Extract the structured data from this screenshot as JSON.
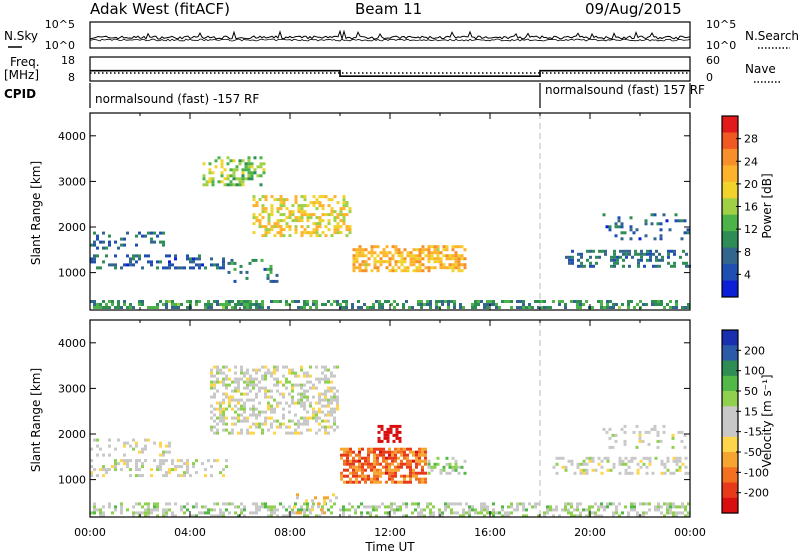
{
  "header": {
    "station": "Adak West (fitACF)",
    "beam": "Beam 11",
    "date": "09/Aug/2015"
  },
  "side_labels": {
    "nsky": "N.Sky",
    "nsearch": "N.Search",
    "freq_line1": "Freq.",
    "freq_line2": "[MHz]",
    "nave": "Nave",
    "cpid": "CPID"
  },
  "noise_panel": {
    "left_ticks": [
      "10^5",
      "10^0"
    ],
    "right_ticks": [
      "10^5",
      "10^0"
    ]
  },
  "freq_panel": {
    "left_ticks": [
      "18",
      "8"
    ],
    "right_ticks": [
      "60",
      "0"
    ],
    "freq_mhz": [
      {
        "t_start": 0,
        "t_end": 10,
        "value": 12.3
      },
      {
        "t_start": 10,
        "t_end": 18,
        "value": 10.0
      },
      {
        "t_start": 18,
        "t_end": 24,
        "value": 12.3
      }
    ],
    "nave": 20
  },
  "cpid_panel": {
    "left_text": "normalsound (fast) -157 RF",
    "right_text": "normalsound (fast) 157 RF",
    "change_hour": 18
  },
  "power_colorbar": {
    "label": "Power [dB]",
    "ticks": [
      "28",
      "24",
      "20",
      "16",
      "12",
      "8",
      "4"
    ],
    "colors": [
      "#e31a1c",
      "#f05a22",
      "#f7902a",
      "#ffb22c",
      "#f2d32c",
      "#9fd046",
      "#4bb347",
      "#2e8c55",
      "#33668c",
      "#1f4fb3",
      "#0b1fd6"
    ]
  },
  "velocity_colorbar": {
    "label": "Velocity [m s⁻¹]",
    "ticks": [
      "200",
      "100",
      "50",
      "15",
      "-15",
      "-50",
      "-100",
      "-200"
    ],
    "colors": [
      "#1a2fb0",
      "#2a5aa8",
      "#2e8c55",
      "#52b848",
      "#8fd14f",
      "#c8c8c8",
      "#c8c8c8",
      "#ffd54a",
      "#f7a531",
      "#f2701f",
      "#e83a1a",
      "#d90f0f"
    ]
  },
  "x_axis": {
    "title": "Time UT",
    "ticks": [
      "00:00",
      "04:00",
      "08:00",
      "12:00",
      "16:00",
      "20:00",
      "00:00"
    ]
  },
  "y_axis": {
    "title": "Slant Range [km]",
    "ticks": [
      "1000",
      "2000",
      "3000",
      "4000"
    ]
  },
  "chart_data": [
    {
      "type": "heatmap",
      "title": "Power",
      "xlabel": "Time UT",
      "ylabel": "Slant Range [km]",
      "xlim_hours": [
        0,
        24
      ],
      "ylim_km": [
        180,
        4500
      ],
      "colorbar_label": "Power [dB]",
      "clim": [
        0,
        30
      ],
      "regions": [
        {
          "t": [
            0,
            24
          ],
          "r": [
            180,
            400
          ],
          "value": 10,
          "density": 0.55
        },
        {
          "t": [
            0,
            5.5
          ],
          "r": [
            1050,
            1400
          ],
          "value": 6,
          "density": 0.35
        },
        {
          "t": [
            0,
            3.2
          ],
          "r": [
            1500,
            1900
          ],
          "value": 7,
          "density": 0.25
        },
        {
          "t": [
            4.5,
            7.0
          ],
          "r": [
            2900,
            3550
          ],
          "value": 14,
          "density": 0.45
        },
        {
          "t": [
            6.5,
            10.5
          ],
          "r": [
            1800,
            2700
          ],
          "value": 18,
          "density": 0.45
        },
        {
          "t": [
            10.5,
            15.0
          ],
          "r": [
            1000,
            1600
          ],
          "value": 20,
          "density": 0.6
        },
        {
          "t": [
            19.0,
            24.0
          ],
          "r": [
            1100,
            1500
          ],
          "value": 7,
          "density": 0.35
        },
        {
          "t": [
            20.5,
            24.0
          ],
          "r": [
            1700,
            2300
          ],
          "value": 6,
          "density": 0.2
        },
        {
          "t": [
            5.5,
            7.5
          ],
          "r": [
            800,
            1300
          ],
          "value": 9,
          "density": 0.15
        }
      ]
    },
    {
      "type": "heatmap",
      "title": "Velocity",
      "xlabel": "Time UT",
      "ylabel": "Slant Range [km]",
      "xlim_hours": [
        0,
        24
      ],
      "ylim_km": [
        180,
        4500
      ],
      "colorbar_label": "Velocity [m s⁻¹]",
      "clim": [
        -200,
        200
      ],
      "regions": [
        {
          "t": [
            0,
            24
          ],
          "r": [
            180,
            500
          ],
          "value": 30,
          "density": 0.45
        },
        {
          "t": [
            0,
            5.5
          ],
          "r": [
            1050,
            1450
          ],
          "value": 0,
          "density": 0.35
        },
        {
          "t": [
            0,
            3.2
          ],
          "r": [
            1500,
            1900
          ],
          "value": 0,
          "density": 0.25
        },
        {
          "t": [
            4.8,
            10.0
          ],
          "r": [
            2000,
            3500
          ],
          "value": 0,
          "density": 0.45
        },
        {
          "t": [
            10.0,
            13.5
          ],
          "r": [
            900,
            1700
          ],
          "value": -120,
          "density": 0.7
        },
        {
          "t": [
            13.5,
            15.0
          ],
          "r": [
            1100,
            1500
          ],
          "value": 40,
          "density": 0.5
        },
        {
          "t": [
            11.5,
            12.5
          ],
          "r": [
            1800,
            2200
          ],
          "value": -220,
          "density": 0.6
        },
        {
          "t": [
            8.0,
            10.0
          ],
          "r": [
            250,
            700
          ],
          "value": -50,
          "density": 0.2
        },
        {
          "t": [
            18.5,
            24.0
          ],
          "r": [
            1100,
            1500
          ],
          "value": 0,
          "density": 0.35
        },
        {
          "t": [
            20.5,
            24.0
          ],
          "r": [
            1700,
            2200
          ],
          "value": 0,
          "density": 0.2
        }
      ]
    }
  ]
}
